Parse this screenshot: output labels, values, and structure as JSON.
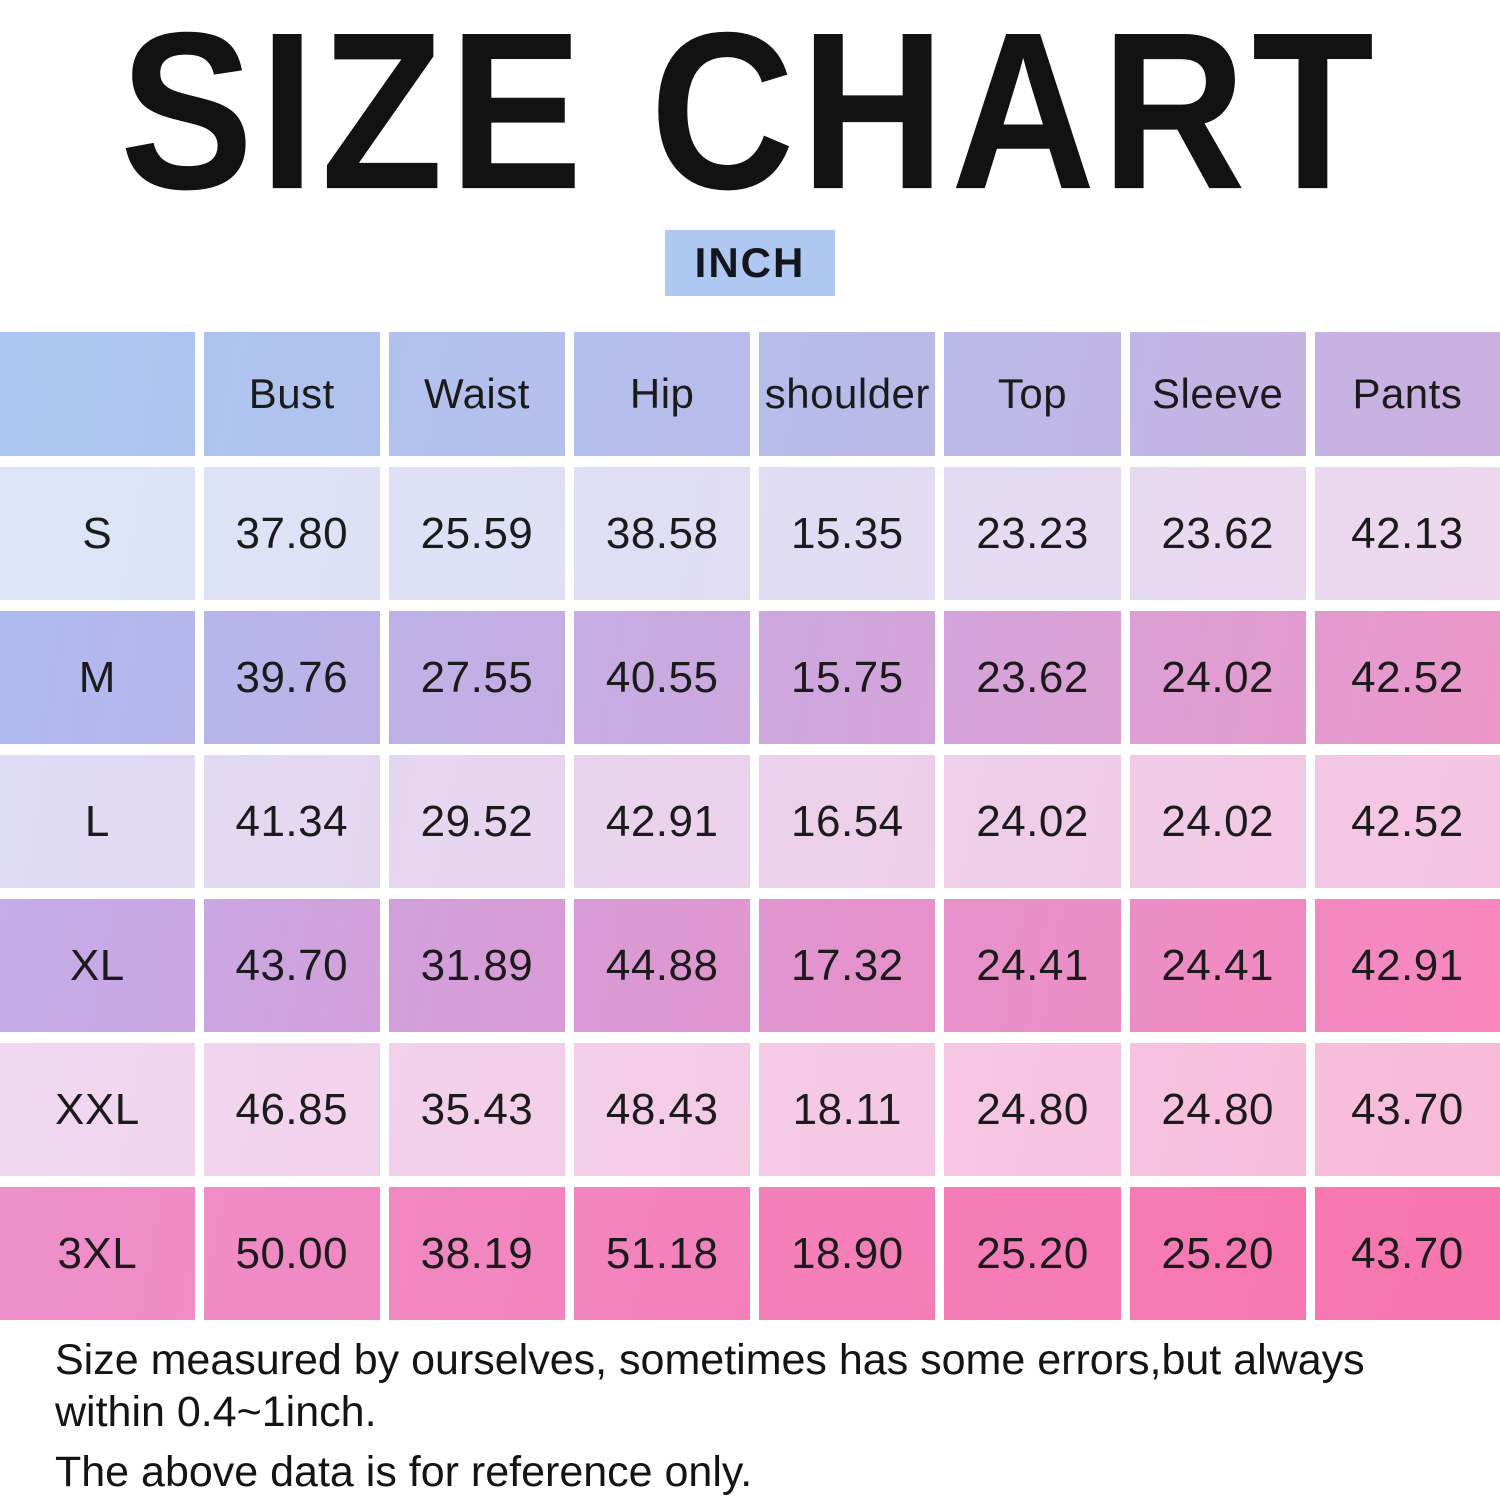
{
  "title": "SIZE CHART",
  "unit_badge": {
    "label": "INCH",
    "bg": "#aec8f1"
  },
  "table": {
    "columns": [
      "",
      "Bust",
      "Waist",
      "Hip",
      "shoulder",
      "Top",
      "Sleeve",
      "Pants"
    ],
    "header_gradient": [
      "#abc7f1",
      "#b8bbea",
      "#cbafe0"
    ],
    "rows": [
      {
        "size": "S",
        "values": [
          "37.80",
          "25.59",
          "38.58",
          "15.35",
          "23.23",
          "23.62",
          "42.13"
        ],
        "gradient": [
          "#dce5f8",
          "#e0dcf4",
          "#eed7ed"
        ]
      },
      {
        "size": "M",
        "values": [
          "39.76",
          "27.55",
          "40.55",
          "15.75",
          "23.62",
          "24.02",
          "42.52"
        ],
        "gradient": [
          "#aebbf0",
          "#cfa6dd",
          "#ec96c9"
        ]
      },
      {
        "size": "L",
        "values": [
          "41.34",
          "29.52",
          "42.91",
          "16.54",
          "24.02",
          "24.02",
          "42.52"
        ],
        "gradient": [
          "#dfdcf6",
          "#ecd0ea",
          "#f5c4e2"
        ]
      },
      {
        "size": "XL",
        "values": [
          "43.70",
          "31.89",
          "44.88",
          "17.32",
          "24.41",
          "24.41",
          "42.91"
        ],
        "gradient": [
          "#c2ace9",
          "#e393cd",
          "#f886bc"
        ]
      },
      {
        "size": "XXL",
        "values": [
          "46.85",
          "35.43",
          "48.43",
          "18.11",
          "24.80",
          "24.80",
          "43.70"
        ],
        "gradient": [
          "#f0d8f1",
          "#f5c9e4",
          "#f9bad9"
        ]
      },
      {
        "size": "3XL",
        "values": [
          "50.00",
          "38.19",
          "51.18",
          "18.90",
          "25.20",
          "25.20",
          "43.70"
        ],
        "gradient": [
          "#ee90ca",
          "#f47fb9",
          "#f875ad"
        ]
      }
    ]
  },
  "notes": [
    "Size measured by ourselves, sometimes has some errors,but always within 0.4~1inch.",
    "The above data is for reference only."
  ],
  "chart_data": {
    "type": "table",
    "title": "SIZE CHART",
    "unit": "INCH",
    "columns": [
      "",
      "Bust",
      "Waist",
      "Hip",
      "shoulder",
      "Top",
      "Sleeve",
      "Pants"
    ],
    "rows": [
      [
        "S",
        37.8,
        25.59,
        38.58,
        15.35,
        23.23,
        23.62,
        42.13
      ],
      [
        "M",
        39.76,
        27.55,
        40.55,
        15.75,
        23.62,
        24.02,
        42.52
      ],
      [
        "L",
        41.34,
        29.52,
        42.91,
        16.54,
        24.02,
        24.02,
        42.52
      ],
      [
        "XL",
        43.7,
        31.89,
        44.88,
        17.32,
        24.41,
        24.41,
        42.91
      ],
      [
        "XXL",
        46.85,
        35.43,
        48.43,
        18.11,
        24.8,
        24.8,
        43.7
      ],
      [
        "3XL",
        50.0,
        38.19,
        51.18,
        18.9,
        25.2,
        25.2,
        43.7
      ]
    ],
    "notes": [
      "Size measured by ourselves, sometimes has some errors,but always within 0.4~1inch.",
      "The above data is for reference only."
    ]
  }
}
